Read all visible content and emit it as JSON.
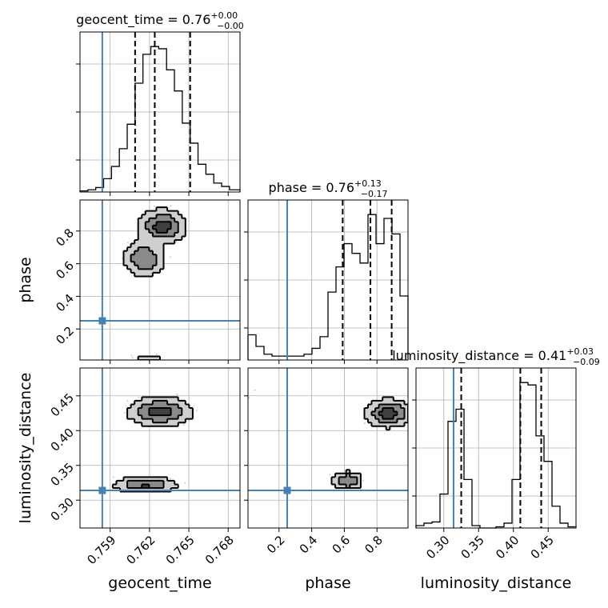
{
  "chart_data": {
    "type": "corner",
    "parameters": [
      "geocent_time",
      "phase",
      "luminosity_distance"
    ],
    "truths": {
      "geocent_time": 0.7584,
      "phase": 0.25,
      "luminosity_distance": 0.314
    },
    "truth_color": "#4682b4",
    "ranges": {
      "geocent_time": [
        0.7567,
        0.7689
      ],
      "phase": [
        0.01,
        0.99
      ],
      "luminosity_distance": [
        0.26,
        0.49
      ]
    },
    "ticks": {
      "geocent_time": [
        0.759,
        0.762,
        0.765,
        0.768
      ],
      "phase": [
        0.2,
        0.4,
        0.6,
        0.8
      ],
      "phase_y": [
        0.2,
        0.4,
        0.6,
        0.8
      ],
      "luminosity_distance": [
        0.3,
        0.35,
        0.4,
        0.45
      ],
      "luminosity_distance_y": [
        0.3,
        0.35,
        0.4,
        0.45
      ]
    },
    "tick_labels": {
      "geocent_time": [
        "0.759",
        "0.762",
        "0.765",
        "0.768"
      ],
      "phase": [
        "0.2",
        "0.4",
        "0.6",
        "0.8"
      ],
      "luminosity_distance": [
        "0.30",
        "0.35",
        "0.40",
        "0.45"
      ]
    },
    "axis_labels": {
      "geocent_time": "geocent_time",
      "phase": "phase",
      "luminosity_distance": "luminosity_distance"
    },
    "titles": [
      {
        "param": "geocent_time",
        "text": "geocent_time = 0.76",
        "up": "+0.00",
        "down": "−0.00"
      },
      {
        "param": "phase",
        "text": "phase = 0.76",
        "up": "+0.13",
        "down": "−0.17"
      },
      {
        "param": "luminosity_distance",
        "text": "luminosity_distance = 0.41",
        "up": "+0.03",
        "down": "−0.09"
      }
    ],
    "histograms": {
      "geocent_time": {
        "edges": [
          0.7567,
          0.7573,
          0.7579,
          0.7585,
          0.7591,
          0.7597,
          0.7603,
          0.7609,
          0.7615,
          0.7621,
          0.7627,
          0.7633,
          0.7639,
          0.7645,
          0.7651,
          0.7657,
          0.7663,
          0.7669,
          0.7675,
          0.7681,
          0.7689
        ],
        "counts": [
          1,
          2,
          4,
          12,
          23,
          39,
          61,
          98,
          124,
          131,
          129,
          110,
          91,
          62,
          44,
          25,
          16,
          8,
          5,
          2
        ]
      },
      "phase": {
        "edges": [
          0.01,
          0.059,
          0.108,
          0.157,
          0.206,
          0.255,
          0.304,
          0.353,
          0.402,
          0.451,
          0.5,
          0.549,
          0.598,
          0.647,
          0.696,
          0.745,
          0.794,
          0.843,
          0.892,
          0.941,
          0.99
        ],
        "counts": [
          13,
          7,
          3,
          2,
          2,
          2,
          2,
          3,
          6,
          12,
          35,
          48,
          60,
          55,
          50,
          75,
          60,
          73,
          65,
          33
        ]
      },
      "luminosity_distance": {
        "edges": [
          0.26,
          0.2715,
          0.283,
          0.2945,
          0.306,
          0.3175,
          0.329,
          0.3405,
          0.352,
          0.3635,
          0.375,
          0.3865,
          0.398,
          0.4095,
          0.421,
          0.4325,
          0.444,
          0.4555,
          0.467,
          0.4785,
          0.49
        ],
        "counts": [
          2,
          4,
          5,
          28,
          88,
          98,
          40,
          2,
          0,
          0,
          1,
          4,
          40,
          120,
          118,
          76,
          55,
          18,
          4,
          1
        ]
      }
    },
    "quantiles": {
      "geocent_time": [
        0.7609,
        0.7624,
        0.7651
      ],
      "phase": [
        0.59,
        0.76,
        0.89
      ],
      "luminosity_distance": [
        0.325,
        0.41,
        0.44
      ]
    },
    "blobs": [
      {
        "x": "geocent_time",
        "y": "phase",
        "cx": 0.7616,
        "cy": 0.63,
        "sx": 0.00085,
        "sy": 0.06,
        "w": 0.8
      },
      {
        "x": "geocent_time",
        "y": "phase",
        "cx": 0.763,
        "cy": 0.83,
        "sx": 0.00095,
        "sy": 0.055,
        "w": 1.0
      },
      {
        "x": "geocent_time",
        "y": "phase",
        "cx": 0.762,
        "cy": 0.03,
        "sx": 0.0018,
        "sy": 0.02,
        "w": 0.18
      },
      {
        "x": "geocent_time",
        "y": "luminosity_distance",
        "cx": 0.7628,
        "cy": 0.427,
        "sx": 0.0013,
        "sy": 0.011,
        "w": 1.0
      },
      {
        "x": "geocent_time",
        "y": "luminosity_distance",
        "cx": 0.7617,
        "cy": 0.322,
        "sx": 0.0013,
        "sy": 0.006,
        "w": 0.85
      },
      {
        "x": "phase",
        "y": "luminosity_distance",
        "cx": 0.87,
        "cy": 0.425,
        "sx": 0.075,
        "sy": 0.011,
        "w": 1.0
      },
      {
        "x": "phase",
        "y": "luminosity_distance",
        "cx": 0.62,
        "cy": 0.328,
        "sx": 0.05,
        "sy": 0.007,
        "w": 0.85
      },
      {
        "x": "phase",
        "y": "luminosity_distance",
        "cx": 0.03,
        "cy": 0.44,
        "sx": 0.02,
        "sy": 0.012,
        "w": 0.15
      }
    ],
    "contour_levels": [
      0.15,
      0.45,
      0.8
    ],
    "grid": true
  }
}
